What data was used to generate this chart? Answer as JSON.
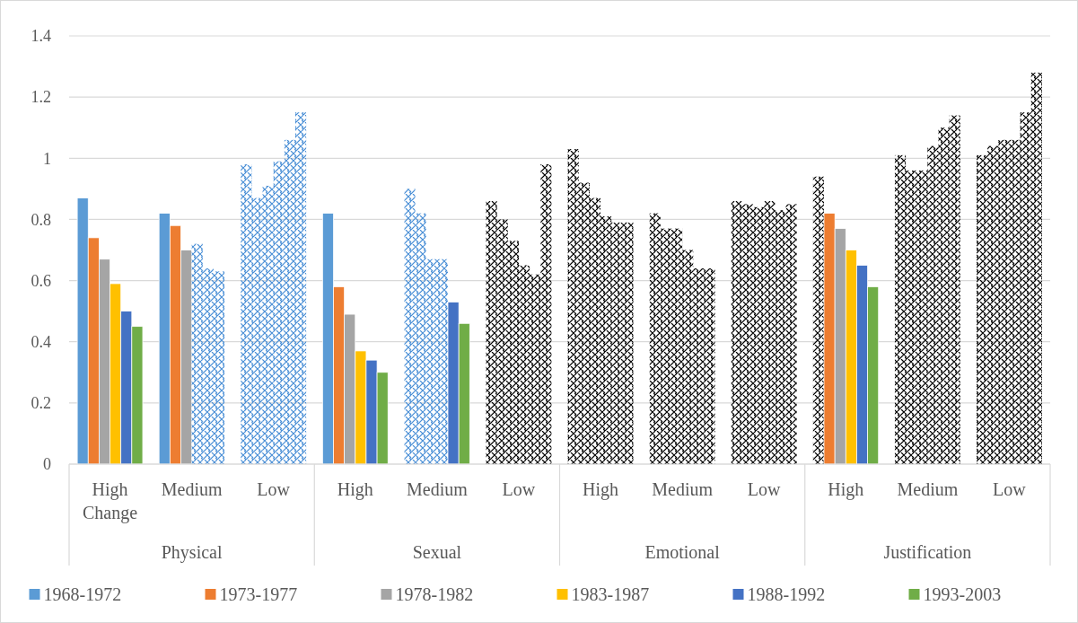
{
  "chart_data": {
    "type": "bar",
    "categories": [
      "High\nChange",
      "Medium",
      "Low",
      "High",
      "Medium",
      "Low",
      "High",
      "Medium",
      "Low",
      "High",
      "Medium",
      "Low"
    ],
    "annotations": [
      "Physical",
      "Sexual",
      "Emotional",
      "Justification"
    ],
    "series": [
      {
        "name": "1968-1972",
        "color": "#5b9bd5",
        "values": [
          0.87,
          0.82,
          0.98,
          0.82,
          0.9,
          0.86,
          1.03,
          0.82,
          0.86,
          0.94,
          1.01,
          1.01
        ],
        "colors": [
          "#5b9bd5",
          "#5b9bd5",
          "#4a8fd6",
          "#5b9bd5",
          "#4a8fd6",
          "#000000",
          "#000000",
          "#000000",
          "#000000",
          "#000000",
          "#000000",
          "#000000"
        ]
      },
      {
        "name": "1973-1977",
        "color": "#ed7d31",
        "values": [
          0.74,
          0.78,
          0.87,
          0.58,
          0.82,
          0.8,
          0.92,
          0.77,
          0.85,
          0.82,
          0.96,
          1.04
        ],
        "colors": [
          "#ed7d31",
          "#ed7d31",
          "#4a8fd6",
          "#ed7d31",
          "#4a8fd6",
          "#000000",
          "#000000",
          "#000000",
          "#000000",
          "#ed7d31",
          "#000000",
          "#000000"
        ]
      },
      {
        "name": "1978-1982",
        "color": "#a5a5a5",
        "values": [
          0.67,
          0.7,
          0.91,
          0.49,
          0.67,
          0.73,
          0.87,
          0.77,
          0.84,
          0.77,
          0.96,
          1.06
        ],
        "colors": [
          "#a5a5a5",
          "#a5a5a5",
          "#4a8fd6",
          "#a5a5a5",
          "#4a8fd6",
          "#000000",
          "#000000",
          "#000000",
          "#000000",
          "#a5a5a5",
          "#000000",
          "#000000"
        ]
      },
      {
        "name": "1983-1987",
        "color": "#ffc000",
        "values": [
          0.59,
          0.72,
          0.99,
          0.37,
          0.67,
          0.65,
          0.81,
          0.7,
          0.86,
          0.7,
          1.04,
          1.06
        ],
        "colors": [
          "#ffc000",
          "#4a8fd6",
          "#4a8fd6",
          "#ffc000",
          "#4a8fd6",
          "#000000",
          "#000000",
          "#000000",
          "#000000",
          "#ffc000",
          "#000000",
          "#000000"
        ]
      },
      {
        "name": "1988-1992",
        "color": "#4472c4",
        "values": [
          0.5,
          0.64,
          1.06,
          0.34,
          0.53,
          0.62,
          0.79,
          0.64,
          0.83,
          0.65,
          1.1,
          1.15
        ],
        "colors": [
          "#4472c4",
          "#4a8fd6",
          "#4a8fd6",
          "#4472c4",
          "#4472c4",
          "#000000",
          "#000000",
          "#000000",
          "#000000",
          "#4472c4",
          "#000000",
          "#000000"
        ]
      },
      {
        "name": "1993-2003",
        "color": "#70ad47",
        "values": [
          0.45,
          0.63,
          1.15,
          0.3,
          0.46,
          0.98,
          0.79,
          0.64,
          0.85,
          0.58,
          1.14,
          1.28
        ],
        "colors": [
          "#70ad47",
          "#4a8fd6",
          "#4a8fd6",
          "#70ad47",
          "#70ad47",
          "#000000",
          "#000000",
          "#000000",
          "#000000",
          "#70ad47",
          "#000000",
          "#000000"
        ]
      }
    ],
    "ylim": [
      0,
      1.4
    ],
    "yticks": [
      0,
      0.2,
      0.4,
      0.6,
      0.8,
      1,
      1.2,
      1.4
    ],
    "grid": "y",
    "legend": "bottom"
  }
}
